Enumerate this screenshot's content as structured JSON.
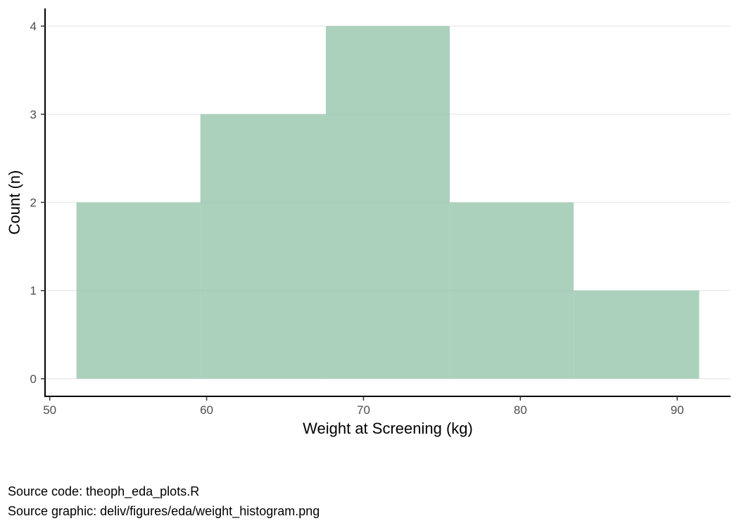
{
  "chart_data": {
    "type": "bar",
    "subtype": "histogram",
    "title": "",
    "xlabel": "Weight at Screening (kg)",
    "ylabel": "Count (n)",
    "bins": [
      {
        "x0": 51.7,
        "x1": 59.6,
        "count": 2
      },
      {
        "x0": 59.6,
        "x1": 67.6,
        "count": 3
      },
      {
        "x0": 67.6,
        "x1": 75.5,
        "count": 4
      },
      {
        "x0": 75.5,
        "x1": 83.4,
        "count": 2
      },
      {
        "x0": 83.4,
        "x1": 91.4,
        "count": 1
      }
    ],
    "xlim": [
      49.7,
      93.4
    ],
    "ylim": [
      -0.2,
      4.2
    ],
    "x_ticks": [
      50,
      60,
      70,
      80,
      90
    ],
    "y_ticks": [
      0,
      1,
      2,
      3,
      4
    ],
    "grid": "horizontal-major",
    "fill_color": "#8fc1a6",
    "fill_opacity": 0.75
  },
  "captions": {
    "source_code": "Source code: theoph_eda_plots.R",
    "source_graphic": "Source graphic: deliv/figures/eda/weight_histogram.png"
  }
}
